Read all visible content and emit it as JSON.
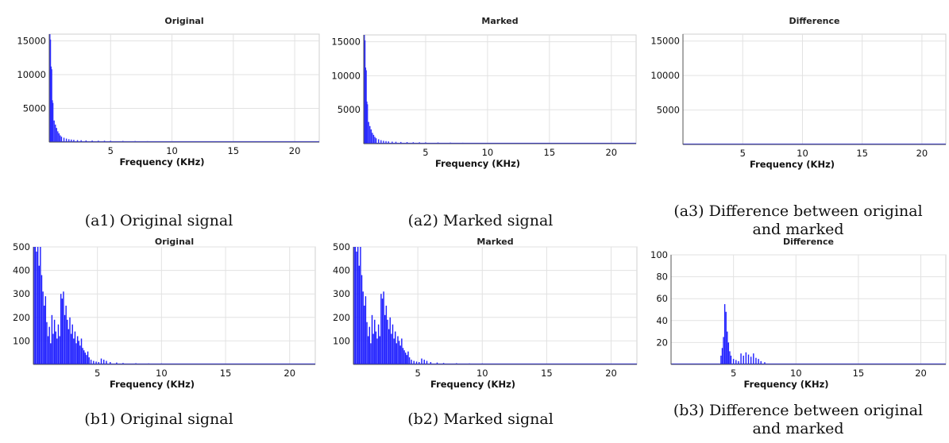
{
  "captions": {
    "a1": "(a1) Original signal",
    "a2": "(a2) Marked signal",
    "a3_line1": "(a3) Difference between original",
    "a3_line2": "and marked",
    "b1": "(b1) Original signal",
    "b2": "(b2) Marked signal",
    "b3_line1": "(b3) Difference between original",
    "b3_line2": "and marked"
  },
  "chart_data": [
    {
      "id": "a1",
      "type": "bar",
      "title": "Original",
      "xlabel": "Frequency (KHz)",
      "ylabel": "",
      "xlim": [
        0,
        22
      ],
      "ylim": [
        0,
        16000
      ],
      "grid": true,
      "xticks": [
        5,
        10,
        15,
        20
      ],
      "yticks": [
        5000,
        10000,
        15000
      ],
      "color": "#2a2aff",
      "points": [
        [
          0.05,
          16000
        ],
        [
          0.1,
          15200
        ],
        [
          0.15,
          11200
        ],
        [
          0.2,
          10800
        ],
        [
          0.25,
          6200
        ],
        [
          0.3,
          5800
        ],
        [
          0.4,
          3200
        ],
        [
          0.5,
          2600
        ],
        [
          0.6,
          2100
        ],
        [
          0.7,
          1600
        ],
        [
          0.8,
          1300
        ],
        [
          0.9,
          1000
        ],
        [
          1.0,
          800
        ],
        [
          1.2,
          650
        ],
        [
          1.4,
          520
        ],
        [
          1.6,
          430
        ],
        [
          1.8,
          380
        ],
        [
          2.0,
          340
        ],
        [
          2.3,
          300
        ],
        [
          2.6,
          280
        ],
        [
          3.0,
          250
        ],
        [
          3.5,
          230
        ],
        [
          4.0,
          210
        ],
        [
          4.5,
          200
        ],
        [
          5.0,
          190
        ],
        [
          6.0,
          170
        ],
        [
          7.0,
          150
        ],
        [
          8.0,
          130
        ],
        [
          9.0,
          110
        ],
        [
          10.0,
          90
        ],
        [
          12.0,
          70
        ],
        [
          14.0,
          60
        ],
        [
          16.0,
          50
        ],
        [
          18.0,
          40
        ],
        [
          20.0,
          30
        ],
        [
          21.5,
          20
        ]
      ]
    },
    {
      "id": "a2",
      "type": "bar",
      "title": "Marked",
      "xlabel": "Frequency (KHz)",
      "ylabel": "",
      "xlim": [
        0,
        22
      ],
      "ylim": [
        0,
        16000
      ],
      "grid": true,
      "xticks": [
        5,
        10,
        15,
        20
      ],
      "yticks": [
        5000,
        10000,
        15000
      ],
      "color": "#2a2aff",
      "points": [
        [
          0.05,
          16000
        ],
        [
          0.1,
          15200
        ],
        [
          0.15,
          11200
        ],
        [
          0.2,
          10800
        ],
        [
          0.25,
          6200
        ],
        [
          0.3,
          5800
        ],
        [
          0.4,
          3200
        ],
        [
          0.5,
          2600
        ],
        [
          0.6,
          2100
        ],
        [
          0.7,
          1600
        ],
        [
          0.8,
          1300
        ],
        [
          0.9,
          1000
        ],
        [
          1.0,
          800
        ],
        [
          1.2,
          650
        ],
        [
          1.4,
          520
        ],
        [
          1.6,
          430
        ],
        [
          1.8,
          380
        ],
        [
          2.0,
          340
        ],
        [
          2.3,
          300
        ],
        [
          2.6,
          280
        ],
        [
          3.0,
          250
        ],
        [
          3.5,
          230
        ],
        [
          4.0,
          210
        ],
        [
          4.5,
          200
        ],
        [
          5.0,
          190
        ],
        [
          6.0,
          170
        ],
        [
          7.0,
          150
        ],
        [
          8.0,
          130
        ],
        [
          9.0,
          110
        ],
        [
          10.0,
          90
        ],
        [
          12.0,
          70
        ],
        [
          14.0,
          60
        ],
        [
          16.0,
          50
        ],
        [
          18.0,
          40
        ],
        [
          20.0,
          30
        ],
        [
          21.5,
          20
        ]
      ]
    },
    {
      "id": "a3",
      "type": "bar",
      "title": "Difference",
      "xlabel": "Frequency (KHz)",
      "ylabel": "",
      "xlim": [
        0,
        22
      ],
      "ylim": [
        0,
        16000
      ],
      "grid": true,
      "xticks": [
        5,
        10,
        15,
        20
      ],
      "yticks": [
        5000,
        10000,
        15000
      ],
      "color": "#2a2aff",
      "points": [
        [
          4.2,
          40
        ],
        [
          4.4,
          60
        ],
        [
          4.6,
          45
        ],
        [
          5.0,
          20
        ],
        [
          5.6,
          15
        ],
        [
          6.2,
          10
        ]
      ]
    },
    {
      "id": "b1",
      "type": "bar",
      "title": "Original",
      "xlabel": "Frequency (KHz)",
      "ylabel": "",
      "xlim": [
        0,
        22
      ],
      "ylim": [
        0,
        500
      ],
      "grid": true,
      "xticks": [
        5,
        10,
        15,
        20
      ],
      "yticks": [
        100,
        200,
        300,
        400,
        500
      ],
      "color": "#1f1fff",
      "points": [
        [
          0.05,
          500
        ],
        [
          0.15,
          500
        ],
        [
          0.25,
          480
        ],
        [
          0.35,
          500
        ],
        [
          0.45,
          420
        ],
        [
          0.55,
          500
        ],
        [
          0.65,
          380
        ],
        [
          0.75,
          310
        ],
        [
          0.85,
          250
        ],
        [
          0.95,
          290
        ],
        [
          1.05,
          180
        ],
        [
          1.15,
          120
        ],
        [
          1.25,
          160
        ],
        [
          1.35,
          90
        ],
        [
          1.45,
          210
        ],
        [
          1.55,
          130
        ],
        [
          1.65,
          190
        ],
        [
          1.75,
          140
        ],
        [
          1.85,
          110
        ],
        [
          1.95,
          170
        ],
        [
          2.05,
          120
        ],
        [
          2.15,
          300
        ],
        [
          2.25,
          280
        ],
        [
          2.35,
          310
        ],
        [
          2.45,
          210
        ],
        [
          2.55,
          250
        ],
        [
          2.65,
          190
        ],
        [
          2.75,
          150
        ],
        [
          2.85,
          200
        ],
        [
          2.95,
          130
        ],
        [
          3.05,
          170
        ],
        [
          3.15,
          110
        ],
        [
          3.25,
          140
        ],
        [
          3.35,
          90
        ],
        [
          3.45,
          120
        ],
        [
          3.55,
          100
        ],
        [
          3.65,
          80
        ],
        [
          3.75,
          110
        ],
        [
          3.85,
          70
        ],
        [
          3.95,
          60
        ],
        [
          4.05,
          50
        ],
        [
          4.15,
          40
        ],
        [
          4.25,
          55
        ],
        [
          4.35,
          30
        ],
        [
          4.5,
          20
        ],
        [
          4.7,
          15
        ],
        [
          4.9,
          12
        ],
        [
          5.1,
          10
        ],
        [
          5.3,
          25
        ],
        [
          5.5,
          20
        ],
        [
          5.7,
          15
        ],
        [
          6.0,
          10
        ],
        [
          6.5,
          8
        ],
        [
          7.0,
          6
        ],
        [
          8.0,
          5
        ],
        [
          9.0,
          4
        ],
        [
          10.0,
          4
        ],
        [
          12.0,
          3
        ],
        [
          14.0,
          3
        ],
        [
          16.0,
          2
        ],
        [
          18.0,
          2
        ],
        [
          20.0,
          2
        ],
        [
          21.5,
          1
        ]
      ]
    },
    {
      "id": "b2",
      "type": "bar",
      "title": "Marked",
      "xlabel": "Frequency (KHz)",
      "ylabel": "",
      "xlim": [
        0,
        22
      ],
      "ylim": [
        0,
        500
      ],
      "grid": true,
      "xticks": [
        5,
        10,
        15,
        20
      ],
      "yticks": [
        100,
        200,
        300,
        400,
        500
      ],
      "color": "#1f1fff",
      "points": [
        [
          0.05,
          500
        ],
        [
          0.15,
          500
        ],
        [
          0.25,
          480
        ],
        [
          0.35,
          500
        ],
        [
          0.45,
          420
        ],
        [
          0.55,
          500
        ],
        [
          0.65,
          380
        ],
        [
          0.75,
          310
        ],
        [
          0.85,
          250
        ],
        [
          0.95,
          290
        ],
        [
          1.05,
          180
        ],
        [
          1.15,
          120
        ],
        [
          1.25,
          160
        ],
        [
          1.35,
          90
        ],
        [
          1.45,
          210
        ],
        [
          1.55,
          130
        ],
        [
          1.65,
          190
        ],
        [
          1.75,
          140
        ],
        [
          1.85,
          110
        ],
        [
          1.95,
          170
        ],
        [
          2.05,
          120
        ],
        [
          2.15,
          300
        ],
        [
          2.25,
          280
        ],
        [
          2.35,
          310
        ],
        [
          2.45,
          210
        ],
        [
          2.55,
          250
        ],
        [
          2.65,
          190
        ],
        [
          2.75,
          150
        ],
        [
          2.85,
          200
        ],
        [
          2.95,
          130
        ],
        [
          3.05,
          170
        ],
        [
          3.15,
          110
        ],
        [
          3.25,
          140
        ],
        [
          3.35,
          90
        ],
        [
          3.45,
          120
        ],
        [
          3.55,
          100
        ],
        [
          3.65,
          80
        ],
        [
          3.75,
          110
        ],
        [
          3.85,
          70
        ],
        [
          3.95,
          60
        ],
        [
          4.05,
          50
        ],
        [
          4.15,
          40
        ],
        [
          4.25,
          55
        ],
        [
          4.35,
          30
        ],
        [
          4.5,
          20
        ],
        [
          4.7,
          15
        ],
        [
          4.9,
          12
        ],
        [
          5.1,
          10
        ],
        [
          5.3,
          25
        ],
        [
          5.5,
          20
        ],
        [
          5.7,
          15
        ],
        [
          6.0,
          10
        ],
        [
          6.5,
          8
        ],
        [
          7.0,
          6
        ],
        [
          8.0,
          5
        ],
        [
          9.0,
          4
        ],
        [
          10.0,
          4
        ],
        [
          12.0,
          3
        ],
        [
          14.0,
          3
        ],
        [
          16.0,
          2
        ],
        [
          18.0,
          2
        ],
        [
          20.0,
          2
        ],
        [
          21.5,
          1
        ]
      ]
    },
    {
      "id": "b3",
      "type": "bar",
      "title": "Difference",
      "xlabel": "Frequency (KHz)",
      "ylabel": "",
      "xlim": [
        0,
        22
      ],
      "ylim": [
        0,
        100
      ],
      "grid": true,
      "xticks": [
        5,
        10,
        15,
        20
      ],
      "yticks": [
        20,
        40,
        60,
        80,
        100
      ],
      "color": "#1f1fff",
      "points": [
        [
          4.0,
          8
        ],
        [
          4.1,
          15
        ],
        [
          4.2,
          25
        ],
        [
          4.3,
          55
        ],
        [
          4.4,
          48
        ],
        [
          4.5,
          30
        ],
        [
          4.6,
          20
        ],
        [
          4.7,
          12
        ],
        [
          4.8,
          8
        ],
        [
          5.0,
          5
        ],
        [
          5.2,
          4
        ],
        [
          5.4,
          3
        ],
        [
          5.6,
          10
        ],
        [
          5.8,
          8
        ],
        [
          6.0,
          11
        ],
        [
          6.2,
          9
        ],
        [
          6.4,
          7
        ],
        [
          6.6,
          10
        ],
        [
          6.8,
          6
        ],
        [
          7.0,
          5
        ],
        [
          7.2,
          3
        ],
        [
          7.5,
          2
        ]
      ]
    }
  ]
}
